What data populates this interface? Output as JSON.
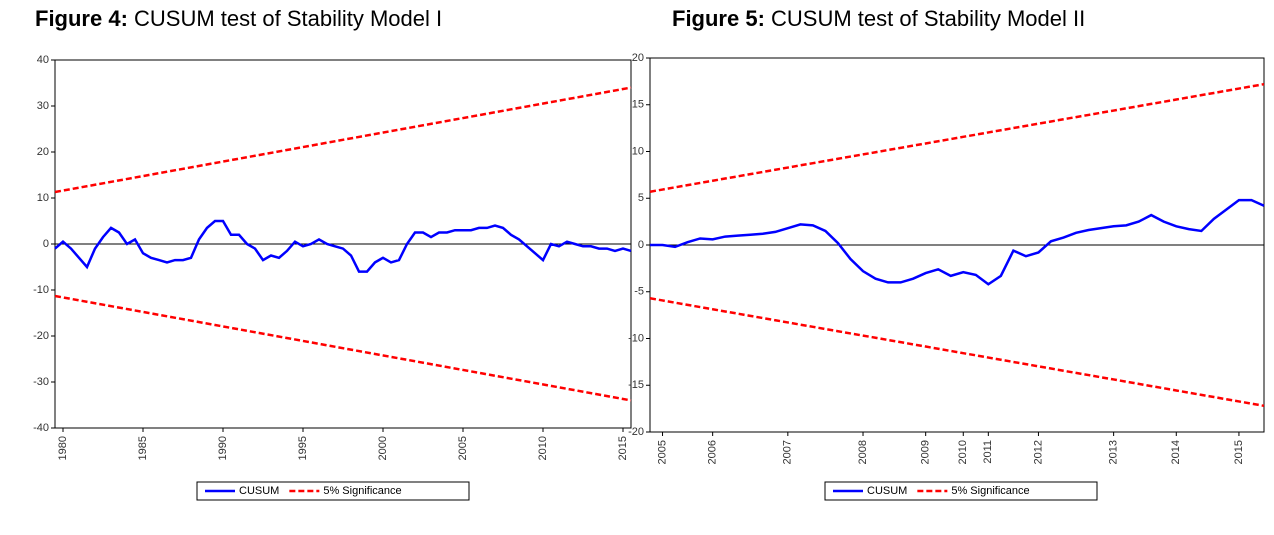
{
  "chart_data": [
    {
      "type": "line",
      "figure_label": "Figure 4:",
      "title": "CUSUM test of Stability Model I",
      "x": [
        1979.5,
        1980,
        1980.5,
        1981,
        1981.5,
        1982,
        1982.5,
        1983,
        1983.5,
        1984,
        1984.5,
        1985,
        1985.5,
        1986,
        1986.5,
        1987,
        1987.5,
        1988,
        1988.5,
        1989,
        1989.5,
        1990,
        1990.5,
        1991,
        1991.5,
        1992,
        1992.5,
        1993,
        1993.5,
        1994,
        1994.5,
        1995,
        1995.5,
        1996,
        1996.5,
        1997,
        1997.5,
        1998,
        1998.5,
        1999,
        1999.5,
        2000,
        2000.5,
        2001,
        2001.5,
        2002,
        2002.5,
        2003,
        2003.5,
        2004,
        2004.5,
        2005,
        2005.5,
        2006,
        2006.5,
        2007,
        2007.5,
        2008,
        2008.5,
        2009,
        2009.5,
        2010,
        2010.5,
        2011,
        2011.5,
        2012,
        2012.5,
        2013,
        2013.5,
        2014,
        2014.5,
        2015,
        2015.5
      ],
      "series": [
        {
          "name": "CUSUM",
          "color": "#0000ff",
          "values": [
            -1,
            0.5,
            -1,
            -3,
            -5,
            -1,
            1.5,
            3.5,
            2.5,
            0,
            1,
            -2,
            -3,
            -3.5,
            -4,
            -3.5,
            -3.5,
            -3,
            1,
            3.5,
            5,
            5,
            2,
            2,
            0,
            -1,
            -3.5,
            -2.5,
            -3,
            -1.5,
            0.5,
            -0.5,
            0,
            1,
            0,
            -0.5,
            -1,
            -2.5,
            -6,
            -6,
            -4,
            -3,
            -4,
            -3.5,
            0,
            2.5,
            2.5,
            1.5,
            2.5,
            2.5,
            3,
            3,
            3,
            3.5,
            3.5,
            4,
            3.5,
            2,
            1,
            -0.5,
            -2,
            -3.5,
            0,
            -0.5,
            0.5,
            0,
            -0.5,
            -0.5,
            -1,
            -1,
            -1.5,
            -1,
            -1.5
          ]
        },
        {
          "name": "5% Significance",
          "color": "#ff0000",
          "dashed": true,
          "x": [
            1979.5,
            2015.5
          ],
          "upper": [
            11.3,
            34
          ],
          "lower": [
            -11.3,
            -34
          ]
        }
      ],
      "xlim": [
        1979.5,
        2015.5
      ],
      "xticks": [
        1980,
        1985,
        1990,
        1995,
        2000,
        2005,
        2010,
        2015
      ],
      "ylim": [
        -40,
        40
      ],
      "yticks": [
        -40,
        -30,
        -20,
        -10,
        0,
        10,
        20,
        30,
        40
      ],
      "zero_line": true,
      "legend": "bottom"
    },
    {
      "type": "line",
      "figure_label": "Figure 5:",
      "title": "CUSUM test of Stability Model II",
      "categories": [
        null,
        "2005",
        null,
        null,
        null,
        "2006",
        null,
        null,
        null,
        null,
        null,
        "2007",
        null,
        null,
        null,
        null,
        null,
        "2008",
        null,
        null,
        null,
        null,
        "2009",
        null,
        null,
        "2010",
        null,
        "2011",
        null,
        null,
        null,
        "2012",
        null,
        null,
        null,
        null,
        null,
        "2013",
        null,
        null,
        null,
        null,
        "2014",
        null,
        null,
        null,
        null,
        "2015",
        null,
        null
      ],
      "series": [
        {
          "name": "CUSUM",
          "color": "#0000ff",
          "values": [
            0,
            0,
            -0.2,
            0.3,
            0.7,
            0.6,
            0.9,
            1.0,
            1.1,
            1.2,
            1.4,
            1.8,
            2.2,
            2.1,
            1.5,
            0.2,
            -1.5,
            -2.8,
            -3.6,
            -4.0,
            -4.0,
            -3.6,
            -3.0,
            -2.6,
            -3.3,
            -2.9,
            -3.2,
            -4.2,
            -3.3,
            -0.6,
            -1.2,
            -0.8,
            0.4,
            0.8,
            1.3,
            1.6,
            1.8,
            2.0,
            2.1,
            2.5,
            3.2,
            2.5,
            2.0,
            1.7,
            1.5,
            2.8,
            3.8,
            4.8,
            4.8,
            4.2
          ]
        },
        {
          "name": "5% Significance",
          "color": "#ff0000",
          "dashed": true,
          "upper": [
            5.7,
            5.93,
            6.17,
            6.4,
            6.64,
            6.87,
            7.11,
            7.34,
            7.58,
            7.81,
            8.05,
            8.28,
            8.52,
            8.75,
            8.99,
            9.22,
            9.46,
            9.69,
            9.92,
            10.16,
            10.39,
            10.63,
            10.86,
            11.1,
            11.33,
            11.57,
            11.8,
            12.04,
            12.27,
            12.51,
            12.74,
            12.98,
            13.21,
            13.45,
            13.68,
            13.91,
            14.15,
            14.38,
            14.62,
            14.85,
            15.09,
            15.32,
            15.56,
            15.79,
            16.03,
            16.26,
            16.5,
            16.73,
            16.97,
            17.2
          ],
          "lower": [
            -5.7,
            -5.93,
            -6.17,
            -6.4,
            -6.64,
            -6.87,
            -7.11,
            -7.34,
            -7.58,
            -7.81,
            -8.05,
            -8.28,
            -8.52,
            -8.75,
            -8.99,
            -9.22,
            -9.46,
            -9.69,
            -9.92,
            -10.16,
            -10.39,
            -10.63,
            -10.86,
            -11.1,
            -11.33,
            -11.57,
            -11.8,
            -12.04,
            -12.27,
            -12.51,
            -12.74,
            -12.98,
            -13.21,
            -13.45,
            -13.68,
            -13.91,
            -14.15,
            -14.38,
            -14.62,
            -14.85,
            -15.09,
            -15.32,
            -15.56,
            -15.79,
            -16.03,
            -16.26,
            -16.5,
            -16.73,
            -16.97,
            -17.2
          ]
        }
      ],
      "ylim": [
        -20,
        20
      ],
      "yticks": [
        -20,
        -15,
        -10,
        -5,
        0,
        5,
        10,
        15,
        20
      ],
      "zero_line": true,
      "legend": "bottom"
    }
  ]
}
